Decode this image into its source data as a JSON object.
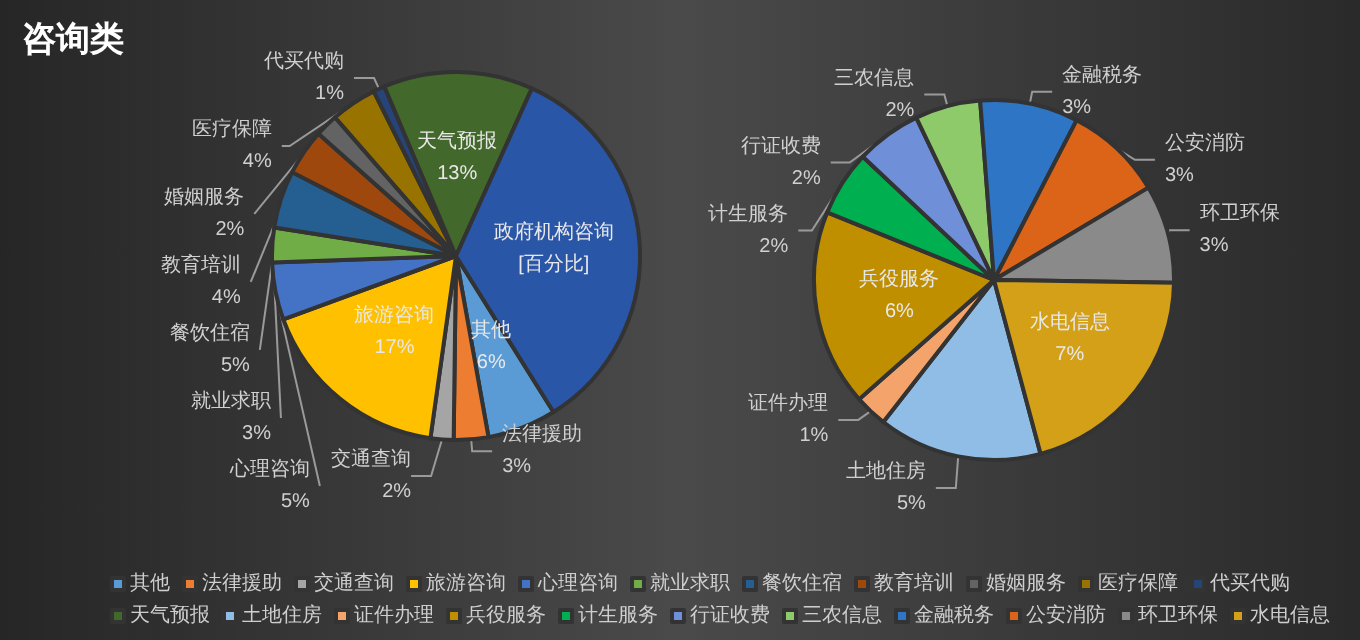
{
  "chart_data": [
    {
      "type": "pie",
      "title": "咨询类",
      "legend": "bottom",
      "categories": [
        "其他",
        "法律援助",
        "交通查询",
        "旅游咨询",
        "心理咨询",
        "就业求职",
        "餐饮住宿",
        "教育培训",
        "婚姻服务",
        "医疗保障",
        "代买代购",
        "天气预报",
        null
      ],
      "values": [
        6,
        3,
        2,
        17,
        5,
        3,
        5,
        4,
        2,
        4,
        1,
        13,
        34
      ],
      "value_labels": [
        "6%",
        "3%",
        "2%",
        "17%",
        "5%",
        "3%",
        "5%",
        "4%",
        "2%",
        "4%",
        "1%",
        "13%",
        null
      ],
      "colors": [
        "#5b9bd5",
        "#ed7d31",
        "#a5a5a5",
        "#ffc000",
        "#4472c4",
        "#70ad47",
        "#255e91",
        "#9e480e",
        "#636363",
        "#997300",
        "#264478",
        "#43682b",
        "#2a56a8"
      ],
      "annotations": [
        "政府机构咨询",
        "[百分比]"
      ]
    },
    {
      "type": "pie",
      "legend": "bottom",
      "categories": [
        "土地住房",
        "证件办理",
        "兵役服务",
        "计生服务",
        "行证收费",
        "三农信息",
        "金融税务",
        "公安消防",
        "环卫环保",
        "水电信息"
      ],
      "values": [
        5,
        1,
        6,
        2,
        2,
        2,
        3,
        3,
        3,
        7
      ],
      "value_labels": [
        "5%",
        "1%",
        "6%",
        "2%",
        "2%",
        "2%",
        "3%",
        "3%",
        "3%",
        "7%"
      ],
      "colors": [
        "#8fbde6",
        "#f4a46a",
        "#bf8f00",
        "#00b050",
        "#6f8fd8",
        "#8fca6a",
        "#2e75c6",
        "#dc6418",
        "#8a8a8a",
        "#d4a017"
      ]
    }
  ]
}
